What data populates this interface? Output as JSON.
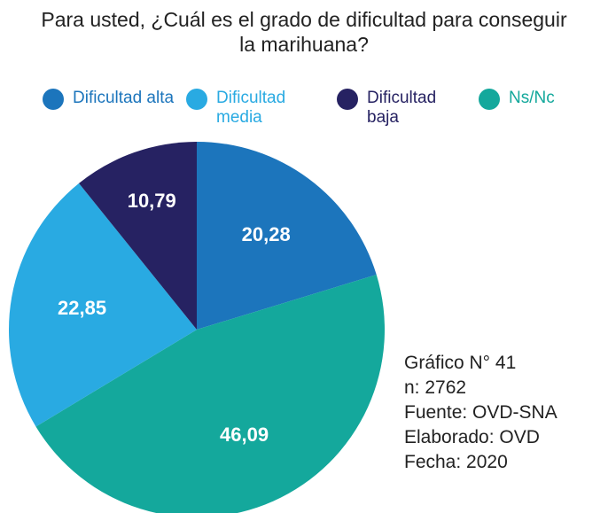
{
  "chart_data": {
    "type": "pie",
    "title": "Para usted, ¿Cuál es el grado de dificultad para conseguir la marihuana?",
    "categories": [
      "Dificultad alta",
      "Ns/Nc",
      "Dificultad media",
      "Dificultad baja"
    ],
    "values": [
      20.28,
      46.09,
      22.85,
      10.79
    ],
    "value_labels": [
      "20,28",
      "46,09",
      "22,85",
      "10,79"
    ],
    "colors": [
      "#1c75bc",
      "#14a89c",
      "#29aae2",
      "#262262"
    ],
    "notes": [
      "Gráfico N° 41",
      "n: 2762",
      "Fuente: OVD-SNA",
      "Elaborado: OVD",
      "Fecha: 2020"
    ]
  }
}
